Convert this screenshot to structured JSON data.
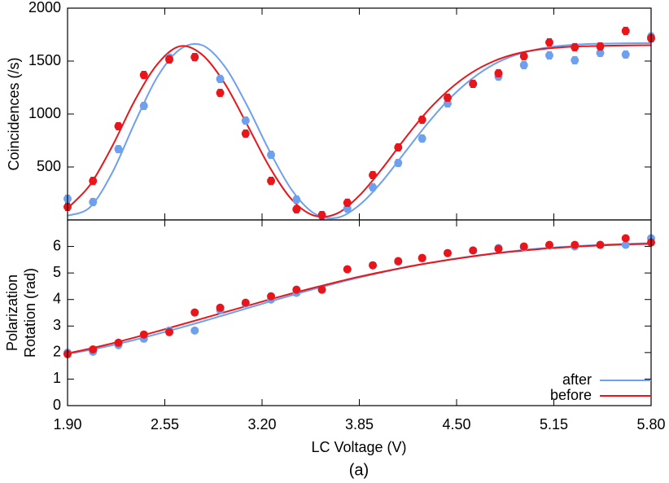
{
  "chart_data": [
    {
      "type": "scatter",
      "y_label": "Coincidences (/s)",
      "xlim": [
        1.9,
        5.8
      ],
      "ylim": [
        0,
        2000
      ],
      "yticks": [
        500,
        1000,
        1500,
        2000
      ],
      "x": [
        1.9,
        2.07,
        2.24,
        2.41,
        2.58,
        2.75,
        2.92,
        3.09,
        3.26,
        3.43,
        3.6,
        3.77,
        3.94,
        4.11,
        4.27,
        4.44,
        4.61,
        4.78,
        4.95,
        5.12,
        5.29,
        5.46,
        5.63,
        5.8
      ],
      "fit_x": [
        1.9,
        2.05,
        2.2,
        2.35,
        2.5,
        2.65,
        2.8,
        2.95,
        3.1,
        3.25,
        3.4,
        3.55,
        3.7,
        3.85,
        4.0,
        4.15,
        4.3,
        4.45,
        4.6,
        4.75,
        4.9,
        5.05,
        5.2,
        5.35,
        5.5,
        5.65,
        5.8
      ],
      "series": [
        {
          "color": "#6fa0ee",
          "values": [
            200,
            169,
            669,
            1077,
            1531,
            1538,
            1331,
            938,
            615,
            192,
            38,
            108,
            308,
            538,
            769,
            1100,
            1285,
            1354,
            1462,
            1554,
            1508,
            1577,
            1562,
            1731
          ],
          "errors": [
            35,
            35,
            35,
            35,
            35,
            35,
            35,
            35,
            35,
            35,
            35,
            35,
            35,
            35,
            35,
            35,
            35,
            35,
            35,
            35,
            35,
            35,
            35,
            35
          ],
          "fit": [
            40,
            120,
            450,
            920,
            1350,
            1610,
            1650,
            1450,
            1080,
            650,
            280,
            60,
            20,
            140,
            360,
            630,
            900,
            1140,
            1330,
            1470,
            1560,
            1615,
            1645,
            1660,
            1665,
            1668,
            1670
          ]
        },
        {
          "color": "#e8161b",
          "values": [
            123,
            369,
            885,
            1369,
            1515,
            1538,
            1200,
            815,
            369,
            100,
            46,
            162,
            423,
            685,
            946,
            1154,
            1285,
            1385,
            1546,
            1677,
            1631,
            1638,
            1785,
            1715
          ],
          "errors": [
            35,
            35,
            35,
            35,
            35,
            35,
            35,
            35,
            35,
            35,
            35,
            35,
            35,
            35,
            35,
            35,
            35,
            35,
            35,
            35,
            35,
            35,
            35,
            35
          ],
          "fit": [
            110,
            330,
            700,
            1130,
            1470,
            1640,
            1560,
            1290,
            900,
            500,
            190,
            40,
            60,
            230,
            480,
            760,
            1020,
            1230,
            1390,
            1500,
            1570,
            1610,
            1630,
            1640,
            1645,
            1648,
            1650
          ]
        }
      ]
    },
    {
      "type": "scatter",
      "y_label": [
        "Polarization",
        "Rotation (rad)"
      ],
      "x_label": "LC Voltage (V)",
      "xlim": [
        1.9,
        5.8
      ],
      "xticks": [
        {
          "value": 1.9,
          "label": "1.90"
        },
        2.55,
        {
          "value": 3.2,
          "label": "3.20"
        },
        3.85,
        {
          "value": 4.5,
          "label": "4.50"
        },
        5.15,
        {
          "value": 5.8,
          "label": "5.80"
        }
      ],
      "ylim": [
        0,
        7
      ],
      "yticks": [
        0,
        1,
        2,
        3,
        4,
        5,
        6
      ],
      "legend": "lower right",
      "x": [
        1.9,
        2.07,
        2.24,
        2.41,
        2.58,
        2.75,
        2.92,
        3.09,
        3.26,
        3.43,
        3.6,
        3.77,
        3.94,
        4.11,
        4.27,
        4.44,
        4.61,
        4.78,
        4.95,
        5.12,
        5.29,
        5.46,
        5.63,
        5.8
      ],
      "fit_x": [
        1.9,
        2.05,
        2.2,
        2.35,
        2.5,
        2.65,
        2.8,
        2.95,
        3.1,
        3.25,
        3.4,
        3.55,
        3.7,
        3.85,
        4.0,
        4.15,
        4.3,
        4.45,
        4.6,
        4.75,
        4.9,
        5.05,
        5.2,
        5.35,
        5.5,
        5.65,
        5.8
      ],
      "series": [
        {
          "name": "after",
          "color": "#6fa0ee",
          "values": [
            2.0,
            2.03,
            2.28,
            2.52,
            2.83,
            2.83,
            3.6,
            3.85,
            4.0,
            4.25,
            4.37,
            5.14,
            5.29,
            5.42,
            5.54,
            5.75,
            5.85,
            5.94,
            5.97,
            6.03,
            6.0,
            6.06,
            6.06,
            6.31
          ],
          "fit": [
            1.95,
            2.1,
            2.28,
            2.48,
            2.7,
            2.93,
            3.17,
            3.42,
            3.67,
            3.92,
            4.16,
            4.4,
            4.62,
            4.83,
            5.02,
            5.2,
            5.36,
            5.5,
            5.63,
            5.74,
            5.84,
            5.92,
            5.98,
            6.03,
            6.07,
            6.1,
            6.13
          ]
        },
        {
          "name": "before",
          "color": "#e8161b",
          "values": [
            1.94,
            2.12,
            2.37,
            2.68,
            2.77,
            3.51,
            3.69,
            3.88,
            4.12,
            4.37,
            4.37,
            5.14,
            5.29,
            5.45,
            5.57,
            5.75,
            5.85,
            5.91,
            6.0,
            6.06,
            6.06,
            6.06,
            6.31,
            6.15
          ],
          "fit": [
            1.97,
            2.15,
            2.35,
            2.57,
            2.8,
            3.04,
            3.28,
            3.52,
            3.76,
            4.0,
            4.23,
            4.45,
            4.66,
            4.86,
            5.04,
            5.21,
            5.36,
            5.5,
            5.62,
            5.73,
            5.82,
            5.9,
            5.96,
            6.01,
            6.05,
            6.08,
            6.1
          ]
        }
      ]
    }
  ],
  "caption": "(a)"
}
